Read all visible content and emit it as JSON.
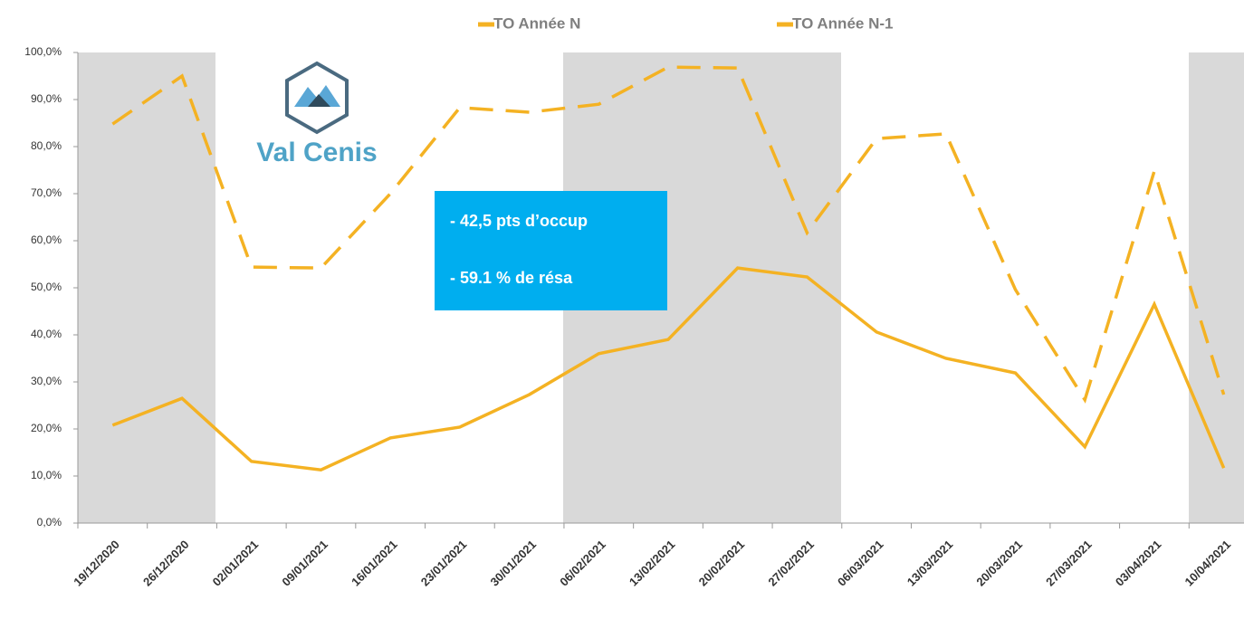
{
  "chart_data": {
    "type": "line",
    "categories": [
      "19/12/2020",
      "26/12/2020",
      "02/01/2021",
      "09/01/2021",
      "16/01/2021",
      "23/01/2021",
      "30/01/2021",
      "06/02/2021",
      "13/02/2021",
      "20/02/2021",
      "27/02/2021",
      "06/03/2021",
      "13/03/2021",
      "20/03/2021",
      "27/03/2021",
      "03/04/2021",
      "10/04/2021"
    ],
    "series": [
      {
        "name": "TO Année N",
        "color": "#f4b223",
        "line_style": "solid",
        "values": [
          20.8,
          26.5,
          13.1,
          11.3,
          18.1,
          20.4,
          27.3,
          36.0,
          39.0,
          54.2,
          52.3,
          40.6,
          35.0,
          31.9,
          16.2,
          46.5,
          11.7
        ]
      },
      {
        "name": "TO Année N-1",
        "color": "#f4b223",
        "line_style": "dashed",
        "values": [
          84.8,
          95.0,
          54.4,
          54.2,
          70.0,
          88.3,
          87.3,
          89.0,
          96.9,
          96.7,
          61.7,
          81.7,
          82.7,
          49.6,
          26.2,
          74.8,
          27.3
        ]
      }
    ],
    "ylim": [
      0,
      100
    ],
    "yticks": [
      {
        "value": 0,
        "label": "0,0%"
      },
      {
        "value": 10,
        "label": "10,0%"
      },
      {
        "value": 20,
        "label": "20,0%"
      },
      {
        "value": 30,
        "label": "30,0%"
      },
      {
        "value": 40,
        "label": "40,0%"
      },
      {
        "value": 50,
        "label": "50,0%"
      },
      {
        "value": 60,
        "label": "60,0%"
      },
      {
        "value": 70,
        "label": "70,0%"
      },
      {
        "value": 80,
        "label": "80,0%"
      },
      {
        "value": 90,
        "label": "90,0%"
      },
      {
        "value": 100,
        "label": "100,0%"
      }
    ],
    "legend": "top",
    "annotations": [
      "- 42,5 pts d’occup",
      "- 59.1 % de résa"
    ],
    "logo_text": "Val Cenis"
  }
}
